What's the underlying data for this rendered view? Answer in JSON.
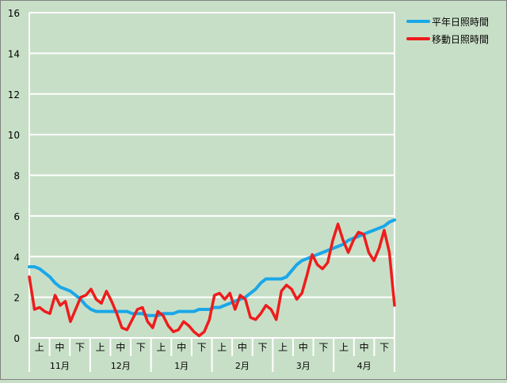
{
  "chart_data": {
    "type": "line",
    "ylim": [
      0,
      16
    ],
    "yticks": [
      0,
      2,
      4,
      6,
      8,
      10,
      12,
      14,
      16
    ],
    "months": [
      "11月",
      "12月",
      "1月",
      "2月",
      "3月",
      "4月"
    ],
    "periods": [
      "上",
      "中",
      "下"
    ],
    "grid": true,
    "legend_position": "top-right",
    "series": [
      {
        "name": "平年日照時間",
        "color": "#1aa7e8",
        "values": [
          3.5,
          3.5,
          3.4,
          3.2,
          3.0,
          2.7,
          2.5,
          2.4,
          2.3,
          2.1,
          1.9,
          1.6,
          1.4,
          1.3,
          1.3,
          1.3,
          1.3,
          1.3,
          1.3,
          1.3,
          1.2,
          1.2,
          1.2,
          1.1,
          1.1,
          1.1,
          1.2,
          1.2,
          1.2,
          1.3,
          1.3,
          1.3,
          1.3,
          1.4,
          1.4,
          1.4,
          1.5,
          1.5,
          1.6,
          1.7,
          1.8,
          1.9,
          2.0,
          2.2,
          2.4,
          2.7,
          2.9,
          2.9,
          2.9,
          2.9,
          3.0,
          3.3,
          3.6,
          3.8,
          3.9,
          4.0,
          4.1,
          4.2,
          4.3,
          4.4,
          4.5,
          4.6,
          4.8,
          4.9,
          5.0,
          5.1,
          5.2,
          5.3,
          5.4,
          5.5,
          5.7,
          5.8
        ]
      },
      {
        "name": "移動日照時間",
        "color": "#ee1c1c",
        "values": [
          3.0,
          1.4,
          1.5,
          1.3,
          1.2,
          2.1,
          1.6,
          1.8,
          0.8,
          1.4,
          2.0,
          2.1,
          2.4,
          1.9,
          1.7,
          2.3,
          1.8,
          1.2,
          0.5,
          0.4,
          0.9,
          1.4,
          1.5,
          0.8,
          0.5,
          1.3,
          1.1,
          0.6,
          0.3,
          0.4,
          0.8,
          0.6,
          0.3,
          0.1,
          0.3,
          0.9,
          2.1,
          2.2,
          1.9,
          2.2,
          1.4,
          2.1,
          1.9,
          1.0,
          0.9,
          1.2,
          1.6,
          1.4,
          0.9,
          2.3,
          2.6,
          2.4,
          1.9,
          2.2,
          3.1,
          4.1,
          3.6,
          3.4,
          3.7,
          4.8,
          5.6,
          4.8,
          4.2,
          4.8,
          5.2,
          5.1,
          4.2,
          3.8,
          4.4,
          5.3,
          4.2,
          1.6
        ]
      }
    ]
  }
}
